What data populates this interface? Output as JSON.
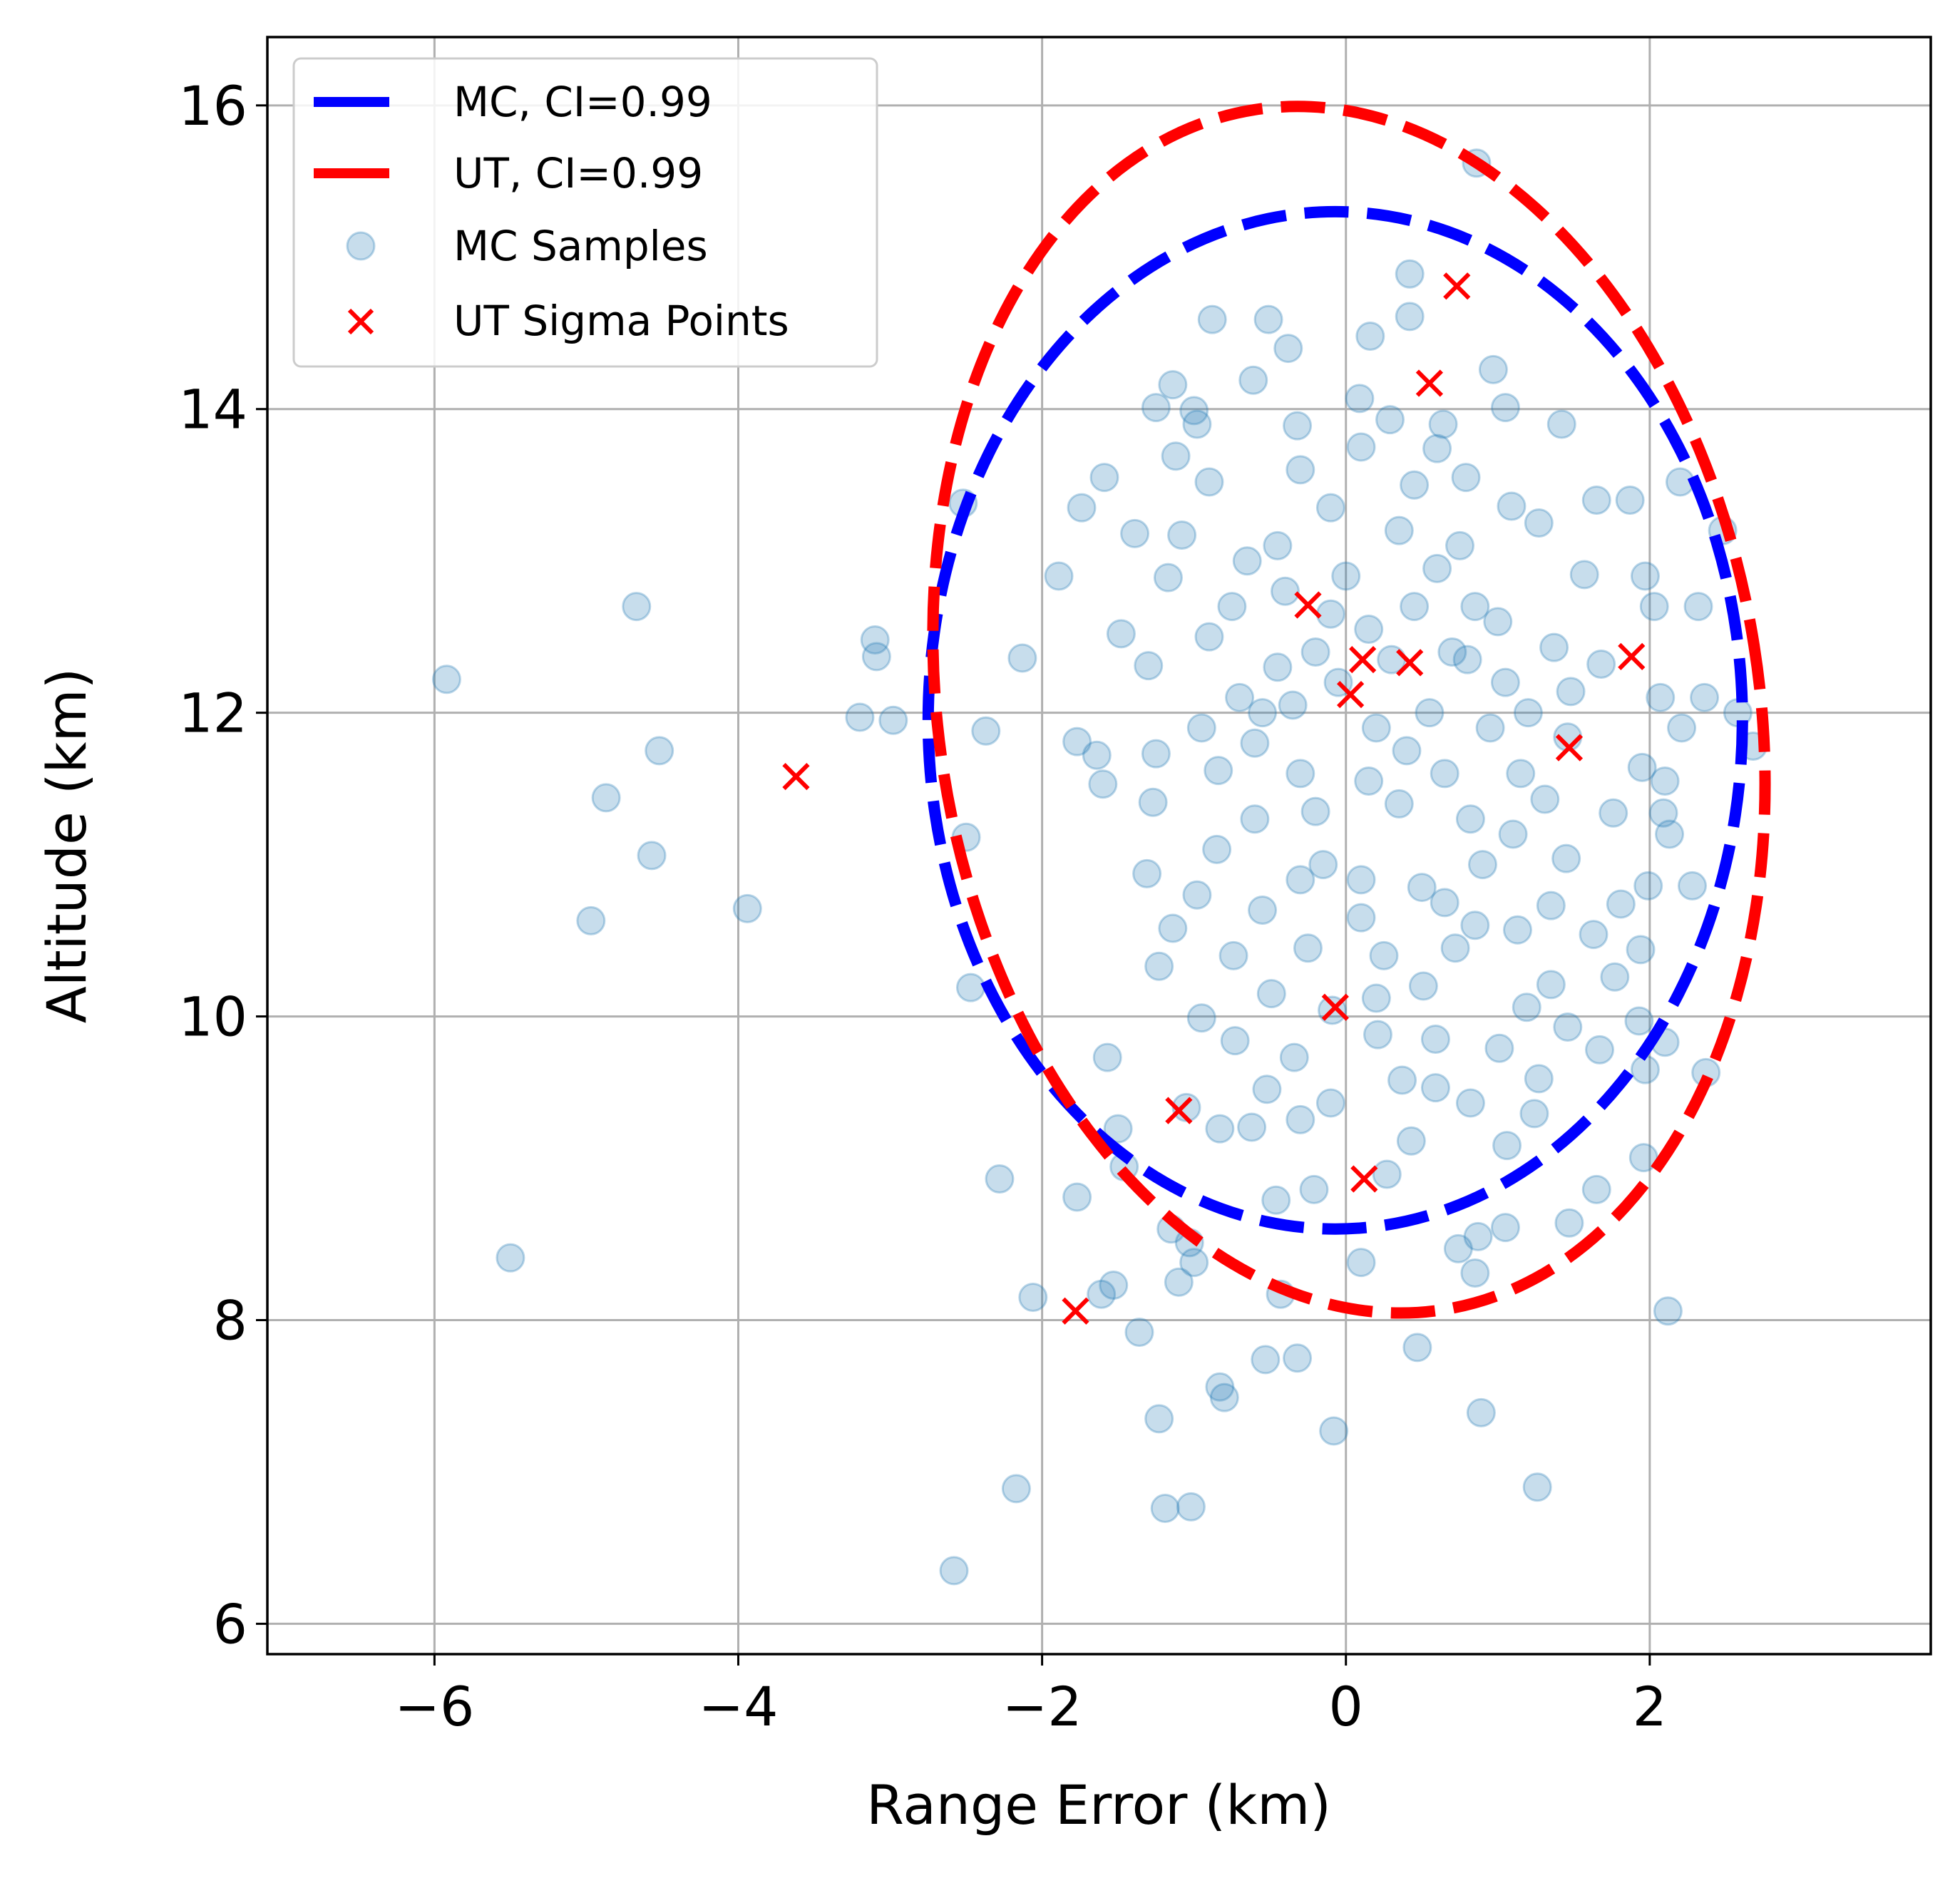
{
  "chart_data": {
    "type": "scatter",
    "title": "",
    "xlabel": "Range Error (km)",
    "ylabel": "Altitude (km)",
    "xlim": [
      -7.1,
      3.85
    ],
    "ylim": [
      5.8,
      16.45
    ],
    "grid": true,
    "legend_position": "top-left",
    "x_ticks": [
      {
        "value": -6,
        "label": "−6"
      },
      {
        "value": -4,
        "label": "−4"
      },
      {
        "value": -2,
        "label": "−2"
      },
      {
        "value": 0,
        "label": "0"
      },
      {
        "value": 2,
        "label": "2"
      }
    ],
    "y_ticks": [
      {
        "value": 6,
        "label": "6"
      },
      {
        "value": 8,
        "label": "8"
      },
      {
        "value": 10,
        "label": "10"
      },
      {
        "value": 12,
        "label": "12"
      },
      {
        "value": 14,
        "label": "14"
      },
      {
        "value": 16,
        "label": "16"
      }
    ],
    "ellipses": [
      {
        "name": "MC, CI=0.99",
        "color": "#0000ff",
        "center": [
          -0.07,
          11.95
        ],
        "semi_x": 2.68,
        "semi_y": 3.35,
        "rotation_deg": 0
      },
      {
        "name": "UT, CI=0.99",
        "color": "#ff0000",
        "center": [
          0.02,
          12.02
        ],
        "semi_x": 2.7,
        "semi_y": 4.0,
        "rotation_deg": -9
      }
    ],
    "mc_samples": {
      "name": "MC Samples",
      "color": "#1f77b4",
      "alpha": 0.25,
      "points": [
        [
          -5.92,
          12.22
        ],
        [
          -4.67,
          12.7
        ],
        [
          -4.52,
          11.75
        ],
        [
          -4.87,
          11.44
        ],
        [
          -4.57,
          11.06
        ],
        [
          -4.97,
          10.63
        ],
        [
          -3.94,
          10.71
        ],
        [
          -5.5,
          8.41
        ],
        [
          -3.1,
          12.48
        ],
        [
          -3.09,
          12.37
        ],
        [
          -3.2,
          11.97
        ],
        [
          -2.98,
          11.95
        ],
        [
          -2.52,
          13.38
        ],
        [
          -2.37,
          11.88
        ],
        [
          -2.5,
          11.18
        ],
        [
          -2.47,
          10.19
        ],
        [
          -2.13,
          12.36
        ],
        [
          -1.89,
          12.9
        ],
        [
          -1.77,
          11.81
        ],
        [
          -1.64,
          11.72
        ],
        [
          -1.6,
          11.53
        ],
        [
          -1.74,
          13.35
        ],
        [
          -1.59,
          13.55
        ],
        [
          -1.48,
          12.52
        ],
        [
          -1.39,
          13.18
        ],
        [
          -1.25,
          14.01
        ],
        [
          -1.14,
          14.16
        ],
        [
          -1.0,
          13.99
        ],
        [
          -0.88,
          14.59
        ],
        [
          -0.51,
          14.59
        ],
        [
          -0.38,
          14.4
        ],
        [
          0.16,
          14.48
        ],
        [
          0.42,
          14.89
        ],
        [
          0.42,
          14.61
        ],
        [
          0.86,
          15.62
        ],
        [
          0.97,
          14.26
        ],
        [
          0.64,
          13.9
        ],
        [
          1.05,
          14.01
        ],
        [
          1.42,
          13.9
        ],
        [
          1.65,
          13.4
        ],
        [
          1.87,
          13.4
        ],
        [
          1.97,
          12.9
        ],
        [
          2.2,
          13.52
        ],
        [
          2.48,
          13.2
        ],
        [
          2.32,
          12.7
        ],
        [
          2.03,
          12.7
        ],
        [
          1.68,
          12.32
        ],
        [
          2.07,
          12.1
        ],
        [
          2.36,
          12.1
        ],
        [
          2.58,
          12.0
        ],
        [
          2.68,
          11.78
        ],
        [
          2.21,
          11.9
        ],
        [
          1.95,
          11.64
        ],
        [
          2.1,
          11.55
        ],
        [
          2.09,
          11.34
        ],
        [
          2.13,
          11.2
        ],
        [
          1.76,
          11.34
        ],
        [
          1.99,
          10.86
        ],
        [
          1.81,
          10.74
        ],
        [
          1.94,
          10.44
        ],
        [
          1.77,
          10.26
        ],
        [
          1.63,
          10.54
        ],
        [
          2.28,
          10.86
        ],
        [
          2.37,
          9.63
        ],
        [
          2.1,
          9.83
        ],
        [
          1.93,
          9.97
        ],
        [
          1.97,
          9.65
        ],
        [
          1.67,
          9.78
        ],
        [
          1.96,
          9.07
        ],
        [
          1.65,
          8.86
        ],
        [
          1.47,
          8.64
        ],
        [
          1.24,
          9.36
        ],
        [
          1.06,
          9.15
        ],
        [
          1.05,
          8.61
        ],
        [
          0.87,
          8.55
        ],
        [
          0.74,
          8.47
        ],
        [
          0.85,
          8.31
        ],
        [
          0.1,
          8.38
        ],
        [
          0.47,
          7.82
        ],
        [
          0.89,
          7.39
        ],
        [
          1.26,
          6.9
        ],
        [
          2.12,
          8.06
        ],
        [
          -0.08,
          7.27
        ],
        [
          -0.32,
          7.75
        ],
        [
          -0.53,
          7.74
        ],
        [
          -0.43,
          8.17
        ],
        [
          -1.0,
          8.38
        ],
        [
          -1.1,
          8.25
        ],
        [
          -0.83,
          7.56
        ],
        [
          -0.8,
          7.49
        ],
        [
          -1.23,
          7.35
        ],
        [
          -1.36,
          7.92
        ],
        [
          -1.19,
          6.76
        ],
        [
          -1.02,
          6.77
        ],
        [
          -2.17,
          6.89
        ],
        [
          -2.58,
          6.35
        ],
        [
          -1.53,
          8.23
        ],
        [
          -1.61,
          8.17
        ],
        [
          -2.06,
          8.15
        ],
        [
          -1.77,
          8.81
        ],
        [
          -2.28,
          8.93
        ],
        [
          -1.5,
          9.26
        ],
        [
          -1.46,
          9.01
        ],
        [
          -1.57,
          9.73
        ],
        [
          -1.05,
          9.4
        ],
        [
          -1.15,
          8.6
        ],
        [
          -1.03,
          8.51
        ],
        [
          -0.83,
          9.26
        ],
        [
          -0.62,
          9.27
        ],
        [
          -0.52,
          9.52
        ],
        [
          -0.3,
          9.32
        ],
        [
          -0.21,
          8.86
        ],
        [
          -0.46,
          8.79
        ],
        [
          0.27,
          8.96
        ],
        [
          0.43,
          9.18
        ],
        [
          0.59,
          9.53
        ],
        [
          0.82,
          9.43
        ],
        [
          1.01,
          9.79
        ],
        [
          1.27,
          9.59
        ],
        [
          1.46,
          9.93
        ],
        [
          1.35,
          10.21
        ],
        [
          1.19,
          10.06
        ],
        [
          0.59,
          9.85
        ],
        [
          0.37,
          9.58
        ],
        [
          0.21,
          9.88
        ],
        [
          -0.1,
          9.43
        ],
        [
          -0.34,
          9.73
        ],
        [
          -0.73,
          9.84
        ],
        [
          -0.95,
          9.99
        ],
        [
          -1.23,
          10.33
        ],
        [
          -1.14,
          10.58
        ],
        [
          -1.31,
          10.94
        ],
        [
          -1.27,
          11.41
        ],
        [
          -1.25,
          11.73
        ],
        [
          -1.3,
          12.31
        ],
        [
          -1.17,
          12.89
        ],
        [
          -1.08,
          13.17
        ],
        [
          -0.9,
          13.52
        ],
        [
          -1.12,
          13.69
        ],
        [
          -0.98,
          13.9
        ],
        [
          -0.61,
          14.19
        ],
        [
          -0.32,
          13.89
        ],
        [
          0.09,
          14.07
        ],
        [
          0.29,
          13.93
        ],
        [
          0.6,
          13.74
        ],
        [
          0.79,
          13.55
        ],
        [
          1.09,
          13.36
        ],
        [
          1.27,
          13.25
        ],
        [
          1.57,
          12.91
        ],
        [
          1.37,
          12.43
        ],
        [
          1.48,
          12.14
        ],
        [
          1.46,
          11.84
        ],
        [
          1.31,
          11.43
        ],
        [
          1.45,
          11.04
        ],
        [
          1.35,
          10.73
        ],
        [
          1.13,
          10.57
        ],
        [
          0.72,
          10.45
        ],
        [
          0.51,
          10.2
        ],
        [
          0.2,
          10.12
        ],
        [
          -0.09,
          10.04
        ],
        [
          -0.49,
          10.15
        ],
        [
          -0.74,
          10.4
        ],
        [
          -0.98,
          10.8
        ],
        [
          -0.84,
          11.62
        ],
        [
          -0.55,
          12.0
        ],
        [
          -0.2,
          12.4
        ],
        [
          0.15,
          12.55
        ],
        [
          0.45,
          12.7
        ],
        [
          0.7,
          12.4
        ],
        [
          0.95,
          11.9
        ],
        [
          0.82,
          11.3
        ],
        [
          0.5,
          10.85
        ],
        [
          0.1,
          10.65
        ],
        [
          -0.3,
          10.9
        ],
        [
          -0.6,
          11.3
        ],
        [
          -0.75,
          12.7
        ],
        [
          -0.45,
          13.1
        ],
        [
          -0.1,
          13.35
        ],
        [
          0.35,
          13.2
        ],
        [
          0.6,
          12.95
        ],
        [
          0.85,
          12.7
        ],
        [
          1.05,
          12.2
        ],
        [
          1.15,
          11.6
        ],
        [
          0.9,
          11.0
        ],
        [
          0.65,
          10.75
        ],
        [
          0.25,
          10.4
        ],
        [
          -0.25,
          10.45
        ],
        [
          -0.55,
          10.7
        ],
        [
          -0.85,
          11.1
        ],
        [
          -0.95,
          11.9
        ],
        [
          -0.9,
          12.5
        ],
        [
          -0.65,
          13.0
        ],
        [
          -0.3,
          13.6
        ],
        [
          0.1,
          13.75
        ],
        [
          0.45,
          13.5
        ],
        [
          0.75,
          13.1
        ],
        [
          1.0,
          12.6
        ],
        [
          1.2,
          12.0
        ],
        [
          1.1,
          11.2
        ],
        [
          0.85,
          10.6
        ],
        [
          -0.05,
          12.2
        ],
        [
          0.2,
          11.9
        ],
        [
          -0.3,
          11.6
        ],
        [
          0.35,
          11.4
        ],
        [
          -0.45,
          12.3
        ],
        [
          0.55,
          12.0
        ],
        [
          -0.15,
          11.0
        ],
        [
          0.0,
          12.9
        ],
        [
          -0.6,
          11.8
        ],
        [
          0.65,
          11.6
        ],
        [
          -0.4,
          12.8
        ],
        [
          0.3,
          12.35
        ],
        [
          -0.2,
          11.35
        ],
        [
          0.1,
          10.9
        ],
        [
          -0.7,
          12.1
        ],
        [
          0.8,
          12.35
        ],
        [
          0.4,
          11.75
        ],
        [
          -0.35,
          12.05
        ],
        [
          0.15,
          11.55
        ],
        [
          -0.1,
          12.65
        ]
      ]
    },
    "ut_sigma_points": {
      "name": "UT Sigma Points",
      "color": "#ff0000",
      "points": [
        [
          -3.62,
          11.58
        ],
        [
          -0.25,
          12.71
        ],
        [
          0.11,
          12.35
        ],
        [
          0.42,
          12.33
        ],
        [
          0.03,
          12.12
        ],
        [
          1.88,
          12.37
        ],
        [
          1.47,
          11.77
        ],
        [
          0.55,
          14.17
        ],
        [
          0.73,
          14.81
        ],
        [
          -0.07,
          10.06
        ],
        [
          -1.1,
          9.38
        ],
        [
          0.12,
          8.93
        ],
        [
          -1.78,
          8.06
        ]
      ]
    }
  }
}
